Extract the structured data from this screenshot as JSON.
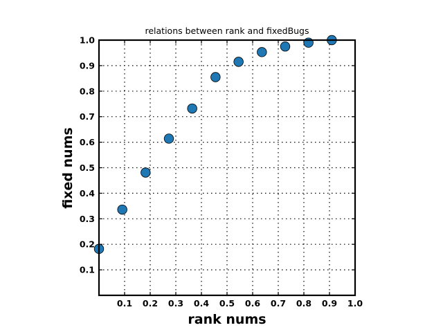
{
  "chart_data": {
    "type": "scatter",
    "title": "relations between rank and fixedBugs",
    "xlabel": "rank nums",
    "ylabel": "fixed nums",
    "xlim": [
      0,
      1.0
    ],
    "ylim": [
      0,
      1.0
    ],
    "xticks": [
      "0.1",
      "0.2",
      "0.3",
      "0.4",
      "0.5",
      "0.6",
      "0.7",
      "0.8",
      "0.9",
      "1.0"
    ],
    "yticks": [
      "0.1",
      "0.2",
      "0.3",
      "0.4",
      "0.5",
      "0.6",
      "0.7",
      "0.8",
      "0.9",
      "1.0"
    ],
    "grid": true,
    "marker_color": "#1f77b4",
    "x": [
      0.0,
      0.091,
      0.182,
      0.273,
      0.364,
      0.455,
      0.545,
      0.636,
      0.727,
      0.818,
      0.909
    ],
    "y": [
      0.182,
      0.336,
      0.481,
      0.614,
      0.732,
      0.855,
      0.915,
      0.953,
      0.975,
      0.99,
      1.0
    ]
  }
}
